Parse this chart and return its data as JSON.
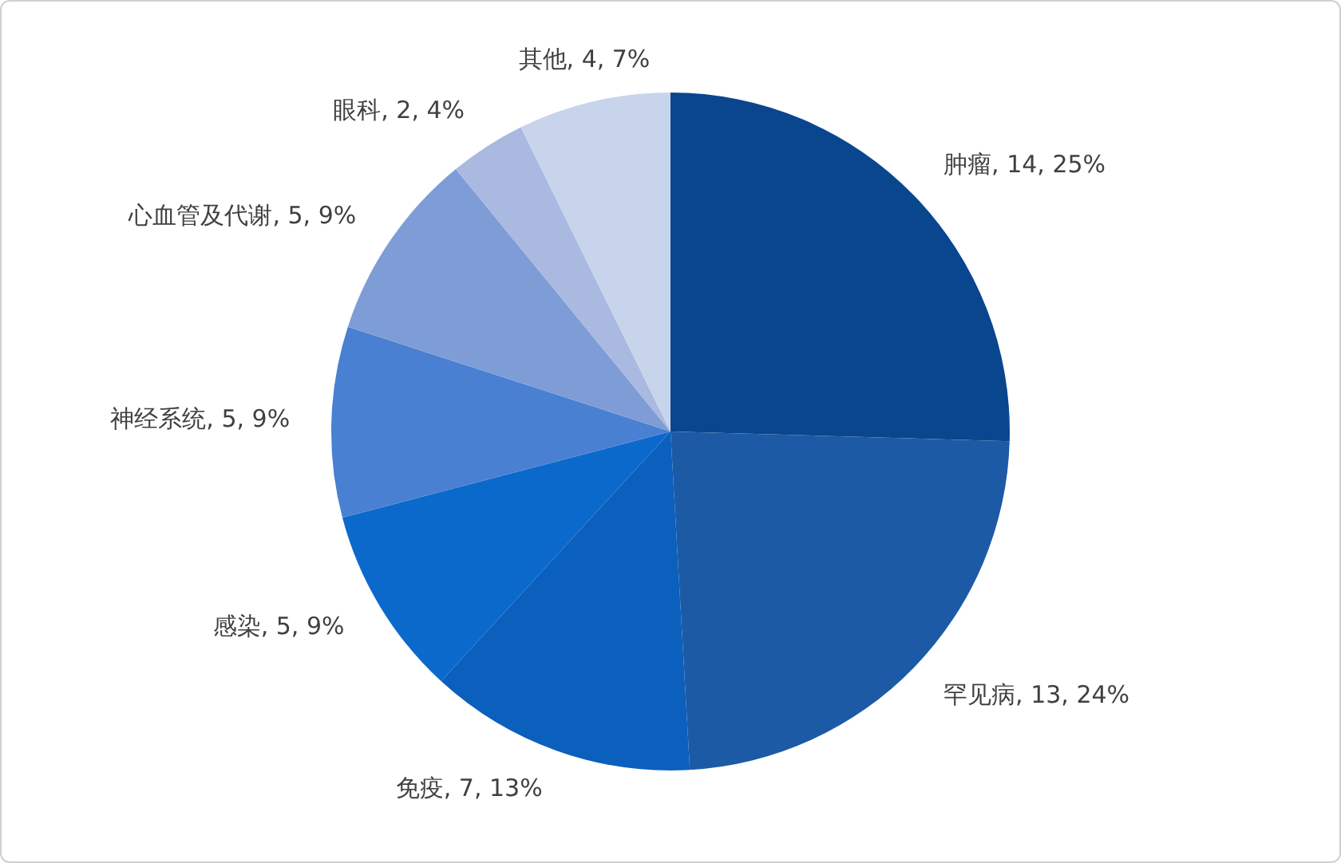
{
  "chart_data": {
    "type": "pie",
    "categories": [
      "肿瘤",
      "罕见病",
      "免疫",
      "感染",
      "神经系统",
      "心血管及代谢",
      "眼科",
      "其他"
    ],
    "values": [
      14,
      13,
      7,
      5,
      5,
      5,
      2,
      4
    ],
    "value_labels": [
      "14, 25%",
      "13, 24%",
      "7, 13%",
      "5, 9%",
      "5, 9%",
      "5, 9%",
      "2, 4%",
      "4, 7%"
    ],
    "colors": [
      "#0a468e",
      "#1d5aa6",
      "#0b5fbd",
      "#0c69cc",
      "#4a80d2",
      "#7e9dd6",
      "#a9b9e0",
      "#c8d3ec"
    ],
    "legend": false
  }
}
